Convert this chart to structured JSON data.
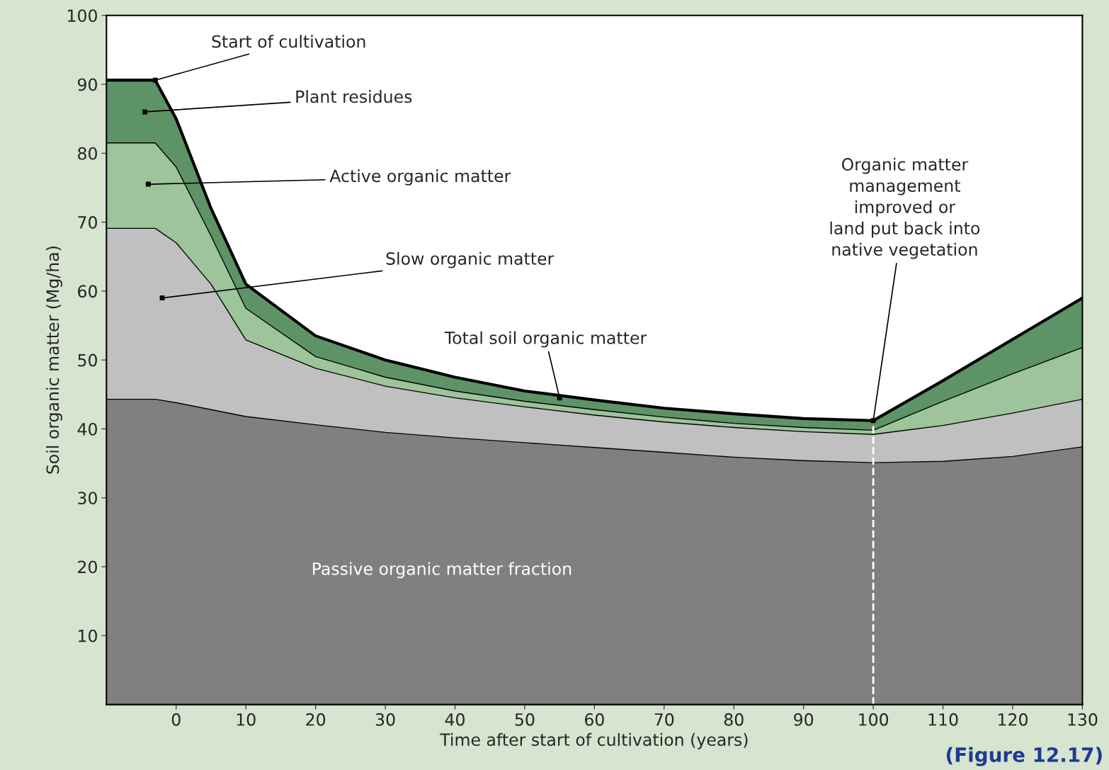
{
  "chart_data": {
    "type": "area",
    "stacked": true,
    "xlabel": "Time after start of cultivation (years)",
    "ylabel": "Soil organic matter (Mg/ha)",
    "x": [
      -10,
      -3,
      0,
      5,
      10,
      20,
      30,
      40,
      50,
      60,
      70,
      80,
      90,
      100,
      110,
      120,
      130
    ],
    "series": [
      {
        "color": "#808080",
        "values": [
          44.3,
          44.3,
          43.8,
          42.8,
          41.8,
          40.6,
          39.5,
          38.7,
          38.0,
          37.3,
          36.6,
          35.9,
          35.4,
          35.1,
          35.3,
          36.0,
          37.4
        ]
      },
      {
        "color": "#c0c0c0",
        "values": [
          24.8,
          24.8,
          23.2,
          18.2,
          11.1,
          8.2,
          6.7,
          5.8,
          5.2,
          4.7,
          4.4,
          4.3,
          4.2,
          4.1,
          5.2,
          6.3,
          6.9
        ]
      },
      {
        "color": "#9dc49a",
        "values": [
          12.4,
          12.4,
          11.0,
          7.0,
          4.6,
          1.7,
          1.3,
          1.0,
          0.8,
          0.8,
          0.7,
          0.6,
          0.6,
          0.6,
          3.5,
          5.7,
          7.5
        ]
      },
      {
        "color": "#5e9367",
        "values": [
          9.1,
          9.1,
          7.0,
          4.0,
          3.5,
          3.0,
          2.5,
          2.0,
          1.5,
          1.4,
          1.3,
          1.4,
          1.3,
          1.4,
          3.0,
          5.0,
          7.2
        ]
      }
    ],
    "xlim": [
      -10,
      130
    ],
    "ylim": [
      0,
      100
    ],
    "xticks": [
      0,
      10,
      20,
      30,
      40,
      50,
      60,
      70,
      80,
      90,
      100,
      110,
      120,
      130
    ],
    "yticks": [
      10,
      20,
      30,
      40,
      50,
      60,
      70,
      80,
      90,
      100
    ],
    "ref_lines": [
      {
        "axis": "x",
        "value": 100,
        "color": "#ffffff",
        "line_style": "dashed"
      }
    ],
    "grid": false,
    "legend": false,
    "annotations": [
      {
        "text": "Start of cultivation",
        "x": -3,
        "y": 90.6
      },
      {
        "text": "Plant residues",
        "x": -4.5,
        "y": 86
      },
      {
        "text": "Active organic matter",
        "x": -4,
        "y": 75.5
      },
      {
        "text": "Slow organic matter",
        "x": -2,
        "y": 59
      },
      {
        "text": "Total soil organic matter",
        "x": 55,
        "y": 44.5
      },
      {
        "text": "Organic matter\nmanagement\nimproved or\nland put back into\nnative vegetation",
        "x": 100,
        "y": 41.2
      },
      "Passive organic matter fraction",
      "(Figure 12.17)"
    ]
  }
}
